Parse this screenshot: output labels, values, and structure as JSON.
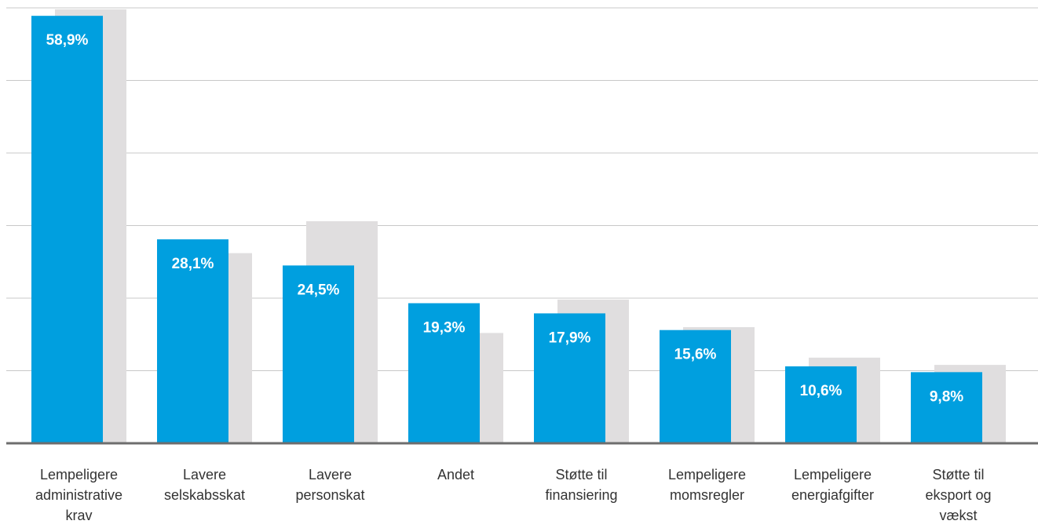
{
  "chart_data": {
    "type": "bar",
    "categories": [
      "Lempeligere administrative krav",
      "Lavere selskabsskat",
      "Lavere personskat",
      "Andet",
      "Støtte til finansiering",
      "Lempeligere momsregler",
      "Lempeligere energiafgifter",
      "Støtte til eksport og vækst"
    ],
    "series": [
      {
        "color": "#e0dedf",
        "values": [
          59.8,
          26.2,
          30.6,
          15.2,
          19.8,
          16.0,
          11.8,
          10.8
        ]
      },
      {
        "color": "#009fdf",
        "values": [
          58.9,
          28.1,
          24.5,
          19.3,
          17.9,
          15.6,
          10.6,
          9.8
        ],
        "value_labels": [
          "58,9%",
          "28,1%",
          "24,5%",
          "19,3%",
          "17,9%",
          "15,6%",
          "10,6%",
          "9,8%"
        ]
      }
    ],
    "ylim": [
      0,
      60
    ],
    "yticks": [
      0,
      10,
      20,
      30,
      40,
      50,
      60
    ],
    "grid": true
  }
}
